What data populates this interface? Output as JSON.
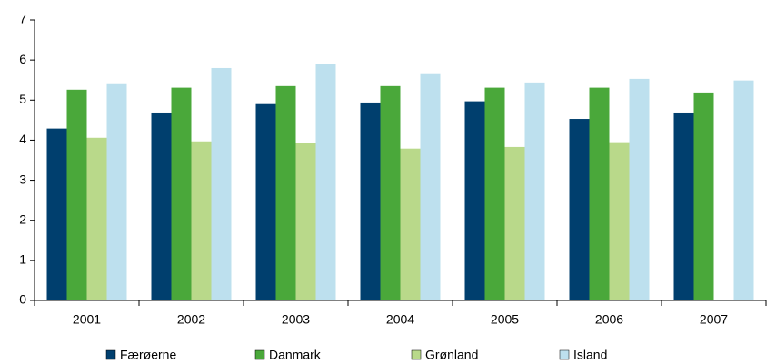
{
  "chart_data": {
    "type": "bar",
    "categories": [
      "2001",
      "2002",
      "2003",
      "2004",
      "2005",
      "2006",
      "2007"
    ],
    "series": [
      {
        "name": "Færøerne",
        "color": "#003f6e",
        "values": [
          4.29,
          4.69,
          4.9,
          4.94,
          4.97,
          4.53,
          4.69
        ]
      },
      {
        "name": "Danmark",
        "color": "#4aa83a",
        "values": [
          5.26,
          5.31,
          5.35,
          5.35,
          5.31,
          5.31,
          5.19
        ]
      },
      {
        "name": "Grønland",
        "color": "#b9d98a",
        "values": [
          4.06,
          3.97,
          3.92,
          3.79,
          3.83,
          3.95,
          null
        ]
      },
      {
        "name": "Island",
        "color": "#bde0ee",
        "values": [
          5.42,
          5.8,
          5.9,
          5.67,
          5.44,
          5.53,
          5.49
        ]
      }
    ],
    "ylim": [
      0,
      7
    ],
    "yticks": [
      0,
      1,
      2,
      3,
      4,
      5,
      6,
      7
    ],
    "grid": false,
    "legend": "bottom"
  }
}
